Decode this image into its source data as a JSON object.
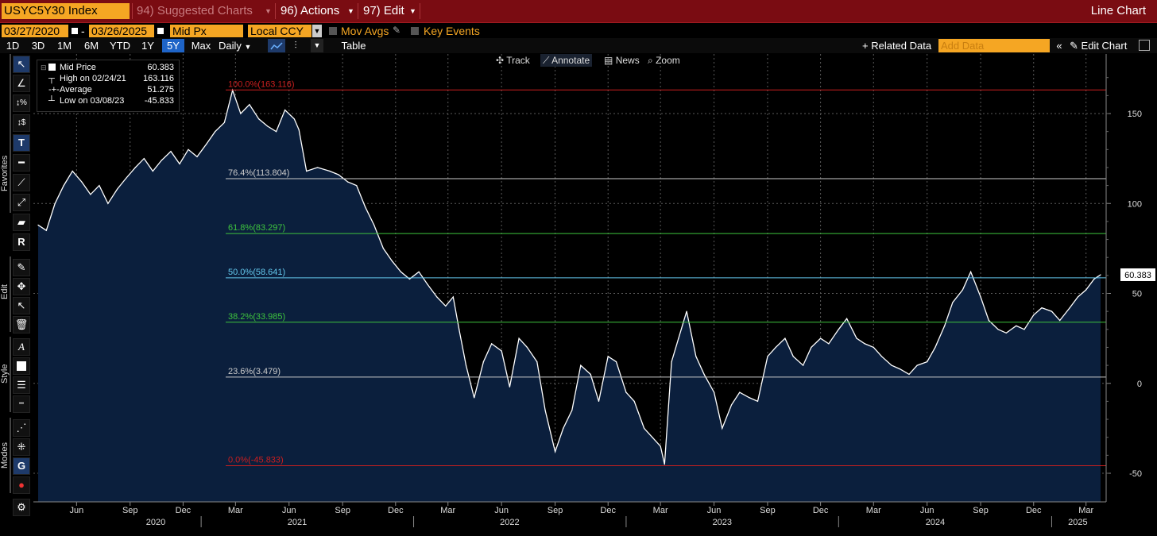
{
  "topbar": {
    "ticker": "USYC5Y30 Index",
    "suggested_charts": "94) Suggested Charts",
    "actions": "96) Actions",
    "edit": "97) Edit",
    "chart_type": "Line Chart"
  },
  "settings": {
    "start_date": "03/27/2020",
    "end_date": "03/26/2025",
    "field": "Mid Px",
    "currency": "Local CCY",
    "mov_avgs": "Mov Avgs",
    "key_events": "Key Events"
  },
  "ranges": [
    "1D",
    "3D",
    "1M",
    "6M",
    "YTD",
    "1Y",
    "5Y",
    "Max"
  ],
  "selected_range": "5Y",
  "periodicity": "Daily",
  "table_label": "Table",
  "related_data": "+ Related Data",
  "add_data_placeholder": "Add Data",
  "edit_chart": "Edit Chart",
  "chart_tools": {
    "track": "Track",
    "annotate": "Annotate",
    "news": "News",
    "zoom": "Zoom"
  },
  "side_labels": {
    "favorites": "Favorites",
    "edit": "Edit",
    "style": "Style",
    "modes": "Modes"
  },
  "legend": {
    "mid_price_label": "Mid Price",
    "mid_price": "60.383",
    "high_label": "High on 02/24/21",
    "high": "163.116",
    "avg_label": "Average",
    "avg": "51.275",
    "low_label": "Low on 03/08/23",
    "low": "-45.833"
  },
  "colors": {
    "line": "#ffffff",
    "area": "#0b1f3d",
    "fib_red": "#cc1f1f",
    "fib_green": "#3ec43e",
    "fib_cyan": "#63c7ec",
    "fib_white": "#cccccc",
    "accent": "#f5a623"
  },
  "chart_data": {
    "type": "area",
    "title": "",
    "xlabel": "",
    "ylabel": "",
    "ylim": [
      -60,
      180
    ],
    "y_ticks": [
      150,
      100,
      50,
      0,
      -50
    ],
    "grid": true,
    "last_value_label": "60.383",
    "x_month_labels": [
      "Jun",
      "Sep",
      "Dec",
      "Mar",
      "Jun",
      "Sep",
      "Dec",
      "Mar",
      "Jun",
      "Sep",
      "Dec",
      "Mar",
      "Jun",
      "Sep",
      "Dec",
      "Mar",
      "Jun",
      "Sep",
      "Dec",
      "Mar"
    ],
    "x_month_dates": [
      "2020-06-01",
      "2020-09-01",
      "2020-12-01",
      "2021-03-01",
      "2021-06-01",
      "2021-09-01",
      "2021-12-01",
      "2022-03-01",
      "2022-06-01",
      "2022-09-01",
      "2022-12-01",
      "2023-03-01",
      "2023-06-01",
      "2023-09-01",
      "2023-12-01",
      "2024-03-01",
      "2024-06-01",
      "2024-09-01",
      "2024-12-01",
      "2025-03-01"
    ],
    "x_year_labels": [
      "2020",
      "2021",
      "2022",
      "2023",
      "2024",
      "2025"
    ],
    "x_year_dates": [
      "2020-10-15",
      "2021-06-15",
      "2022-06-15",
      "2023-06-15",
      "2024-06-15",
      "2025-02-15"
    ],
    "fib_levels": [
      {
        "label": "100.0%(163.116)",
        "value": 163.116,
        "color": "#cc1f1f"
      },
      {
        "label": "76.4%(113.804)",
        "value": 113.804,
        "color": "#cccccc"
      },
      {
        "label": "61.8%(83.297)",
        "value": 83.297,
        "color": "#3ec43e"
      },
      {
        "label": "50.0%(58.641)",
        "value": 58.641,
        "color": "#63c7ec"
      },
      {
        "label": "38.2%(33.985)",
        "value": 33.985,
        "color": "#3ec43e"
      },
      {
        "label": "23.6%(3.479)",
        "value": 3.479,
        "color": "#cccccc"
      },
      {
        "label": "0.0%(-45.833)",
        "value": -45.833,
        "color": "#cc1f1f"
      }
    ],
    "series": [
      {
        "x": [
          "2020-03-27",
          "2020-04-10",
          "2020-04-25",
          "2020-05-10",
          "2020-05-25",
          "2020-06-10",
          "2020-06-25",
          "2020-07-10",
          "2020-07-25",
          "2020-08-10",
          "2020-08-25",
          "2020-09-10",
          "2020-09-25",
          "2020-10-10",
          "2020-10-25",
          "2020-11-10",
          "2020-11-25",
          "2020-12-10",
          "2020-12-25",
          "2021-01-10",
          "2021-01-25",
          "2021-02-10",
          "2021-02-24",
          "2021-03-10",
          "2021-03-25",
          "2021-04-10",
          "2021-04-25",
          "2021-05-10",
          "2021-05-25",
          "2021-06-10",
          "2021-06-18",
          "2021-07-01",
          "2021-07-20",
          "2021-08-10",
          "2021-08-25",
          "2021-09-10",
          "2021-09-25",
          "2021-10-10",
          "2021-10-25",
          "2021-11-10",
          "2021-11-25",
          "2021-12-10",
          "2021-12-25",
          "2022-01-10",
          "2022-01-25",
          "2022-02-10",
          "2022-02-25",
          "2022-03-10",
          "2022-03-20",
          "2022-04-01",
          "2022-04-15",
          "2022-05-01",
          "2022-05-15",
          "2022-06-01",
          "2022-06-15",
          "2022-07-01",
          "2022-07-15",
          "2022-08-01",
          "2022-08-15",
          "2022-09-01",
          "2022-09-15",
          "2022-09-30",
          "2022-10-15",
          "2022-11-01",
          "2022-11-15",
          "2022-12-01",
          "2022-12-15",
          "2023-01-01",
          "2023-01-15",
          "2023-02-01",
          "2023-02-15",
          "2023-03-01",
          "2023-03-08",
          "2023-03-20",
          "2023-04-01",
          "2023-04-15",
          "2023-05-01",
          "2023-05-15",
          "2023-06-01",
          "2023-06-15",
          "2023-07-01",
          "2023-07-15",
          "2023-08-01",
          "2023-08-15",
          "2023-09-01",
          "2023-09-15",
          "2023-10-01",
          "2023-10-15",
          "2023-11-01",
          "2023-11-15",
          "2023-12-01",
          "2023-12-15",
          "2024-01-01",
          "2024-01-15",
          "2024-02-01",
          "2024-02-15",
          "2024-03-01",
          "2024-03-15",
          "2024-04-01",
          "2024-04-15",
          "2024-05-01",
          "2024-05-15",
          "2024-06-01",
          "2024-06-15",
          "2024-07-01",
          "2024-07-15",
          "2024-08-01",
          "2024-08-15",
          "2024-09-01",
          "2024-09-15",
          "2024-10-01",
          "2024-10-15",
          "2024-11-01",
          "2024-11-15",
          "2024-12-01",
          "2024-12-15",
          "2025-01-01",
          "2025-01-15",
          "2025-02-01",
          "2025-02-15",
          "2025-03-01",
          "2025-03-15",
          "2025-03-26"
        ],
        "values": [
          88,
          85,
          100,
          110,
          118,
          112,
          105,
          110,
          100,
          108,
          114,
          120,
          125,
          118,
          124,
          129,
          122,
          130,
          126,
          133,
          140,
          145,
          163,
          150,
          155,
          147,
          143,
          140,
          152,
          147,
          141,
          118,
          120,
          118,
          116,
          112,
          110,
          98,
          88,
          75,
          68,
          62,
          58,
          62,
          55,
          48,
          43,
          48,
          30,
          10,
          -8,
          12,
          22,
          18,
          -2,
          25,
          20,
          12,
          -15,
          -38,
          -25,
          -15,
          10,
          5,
          -10,
          15,
          12,
          -5,
          -10,
          -25,
          -30,
          -35,
          -45,
          12,
          25,
          40,
          15,
          5,
          -5,
          -25,
          -12,
          -5,
          -8,
          -10,
          15,
          20,
          25,
          15,
          10,
          20,
          25,
          22,
          30,
          36,
          25,
          22,
          20,
          15,
          10,
          8,
          5,
          10,
          12,
          20,
          32,
          45,
          52,
          62,
          48,
          35,
          30,
          28,
          32,
          30,
          38,
          42,
          40,
          35,
          42,
          48,
          52,
          58,
          60.383
        ]
      }
    ]
  }
}
